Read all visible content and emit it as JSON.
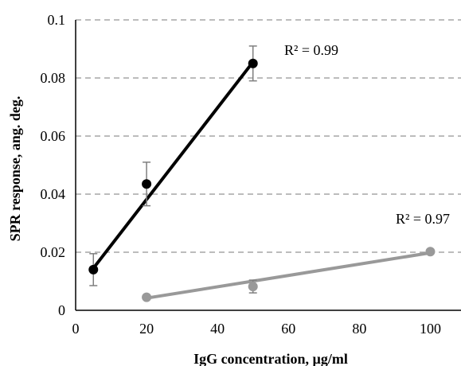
{
  "chart_data": {
    "type": "scatter",
    "xlabel": "IgG concentration, µg/ml",
    "ylabel": "SPR response, ang. deg.",
    "xlim": [
      0,
      110
    ],
    "ylim": [
      0,
      0.1
    ],
    "x_ticks": [
      "0",
      "20",
      "40",
      "60",
      "80",
      "100"
    ],
    "y_ticks": [
      "0",
      "0.02",
      "0.04",
      "0.06",
      "0.08",
      "0.1"
    ],
    "grid": "horizontal dashed",
    "legend": "none",
    "series": [
      {
        "color": "#000000",
        "x": [
          5,
          20,
          50
        ],
        "y": [
          0.014,
          0.0435,
          0.085
        ],
        "error": [
          0.0055,
          0.0075,
          0.006
        ],
        "trendline": {
          "x": [
            5,
            50
          ],
          "y": [
            0.0145,
            0.0855
          ]
        },
        "r2_label": "R² = 0.99"
      },
      {
        "color": "#999999",
        "x": [
          20,
          50,
          100
        ],
        "y": [
          0.0045,
          0.0082,
          0.0202
        ],
        "error": [
          0,
          0.0022,
          0
        ],
        "trendline": {
          "x": [
            20,
            100
          ],
          "y": [
            0.0042,
            0.0198
          ]
        },
        "r2_label": "R² = 0.97"
      }
    ]
  }
}
